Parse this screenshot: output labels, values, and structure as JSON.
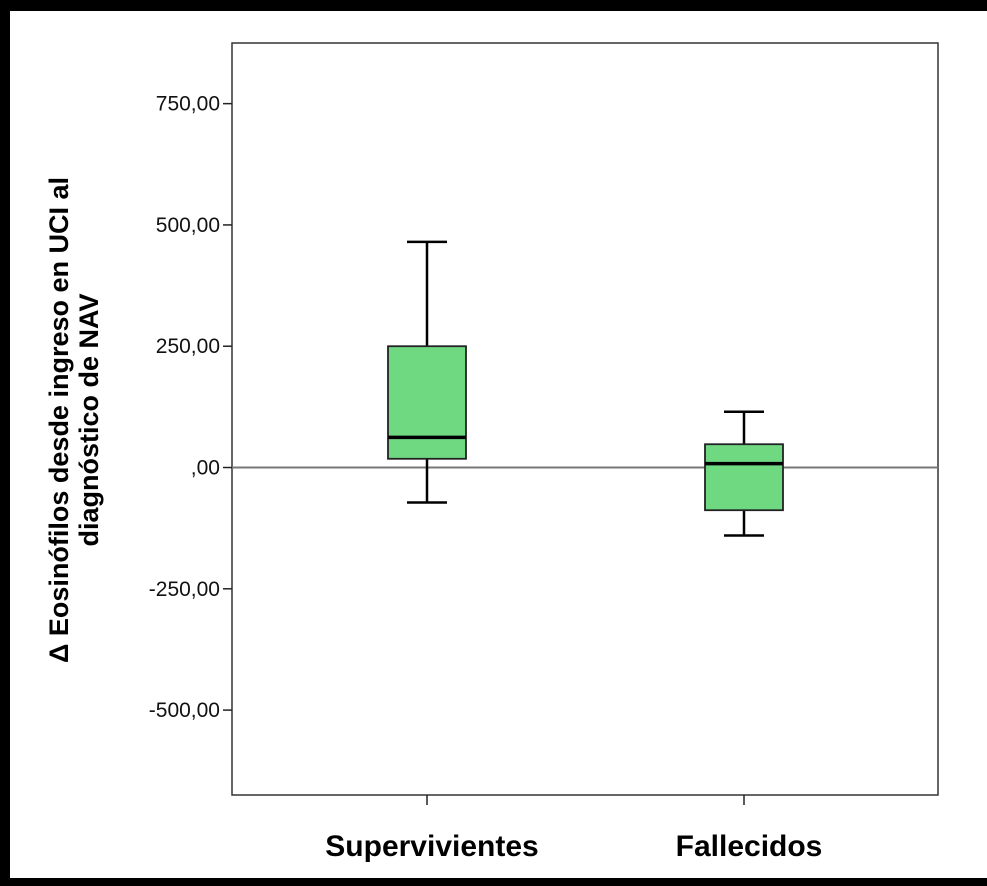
{
  "chart_data": {
    "type": "box",
    "ylabel_lines": [
      "Δ Eosinófilos desde ingreso en UCI al",
      "diagnóstico de NAV"
    ],
    "xlabel": "",
    "ylim": [
      -675,
      875
    ],
    "yticks": [
      {
        "value": 750,
        "label": "750,00"
      },
      {
        "value": 500,
        "label": "500,00"
      },
      {
        "value": 250,
        "label": "250,00"
      },
      {
        "value": 0,
        "label": ",00"
      },
      {
        "value": -250,
        "label": "-250,00"
      },
      {
        "value": -500,
        "label": "-500,00"
      }
    ],
    "reference_line": 0,
    "categories": [
      "Supervivientes",
      "Fallecidos"
    ],
    "boxes": [
      {
        "category": "Supervivientes",
        "min": -72,
        "q1": 18,
        "median": 62,
        "q3": 250,
        "max": 465
      },
      {
        "category": "Fallecidos",
        "min": -140,
        "q1": -88,
        "median": 8,
        "q3": 48,
        "max": 115
      }
    ],
    "box_color": "#6fd982",
    "grid": false
  }
}
